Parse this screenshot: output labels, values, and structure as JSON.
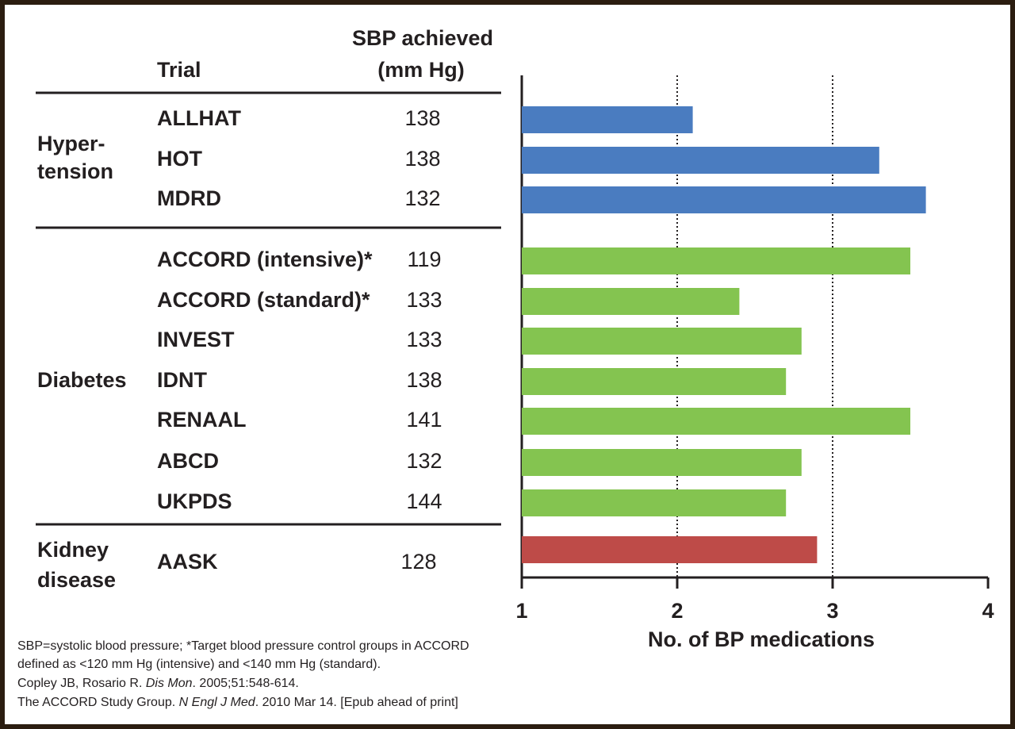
{
  "chart_data": {
    "type": "bar",
    "orientation": "horizontal",
    "column_headers": {
      "trial": "Trial",
      "sbp": [
        "SBP achieved",
        "(mm Hg)"
      ]
    },
    "groups": [
      {
        "label": [
          "Hyper-",
          "tension"
        ],
        "color": "#4a7cc0",
        "categories": [
          "ALLHAT",
          "HOT",
          "MDRD"
        ],
        "sbp": [
          138,
          138,
          132
        ],
        "values": [
          2.1,
          3.3,
          3.6
        ]
      },
      {
        "label": [
          "Diabetes"
        ],
        "color": "#84c450",
        "categories": [
          "ACCORD (intensive)*",
          "ACCORD (standard)*",
          "INVEST",
          "IDNT",
          "RENAAL",
          "ABCD",
          "UKPDS"
        ],
        "sbp": [
          119,
          133,
          133,
          138,
          141,
          132,
          144
        ],
        "values": [
          3.5,
          2.4,
          2.8,
          2.7,
          3.5,
          2.8,
          2.7
        ]
      },
      {
        "label": [
          "Kidney",
          "disease"
        ],
        "color": "#be4b48",
        "categories": [
          "AASK"
        ],
        "sbp": [
          128
        ],
        "values": [
          2.9
        ]
      }
    ],
    "xlabel": "No. of BP medications",
    "xlim": [
      1,
      4
    ],
    "xticks": [
      1,
      2,
      3,
      4
    ],
    "grid": true
  },
  "footnotes": [
    [
      "SBP=systolic blood pressure; *Target blood pressure control groups in ACCORD"
    ],
    [
      "defined as <120 mm Hg (intensive) and <140 mm Hg (standard)."
    ],
    [
      "Copley JB, Rosario R. ",
      "Dis Mon",
      ". 2005;51:548-614."
    ],
    [
      "The ACCORD Study Group. ",
      "N Engl J Med",
      ". 2010 Mar 14. [Epub ahead of print]"
    ]
  ]
}
